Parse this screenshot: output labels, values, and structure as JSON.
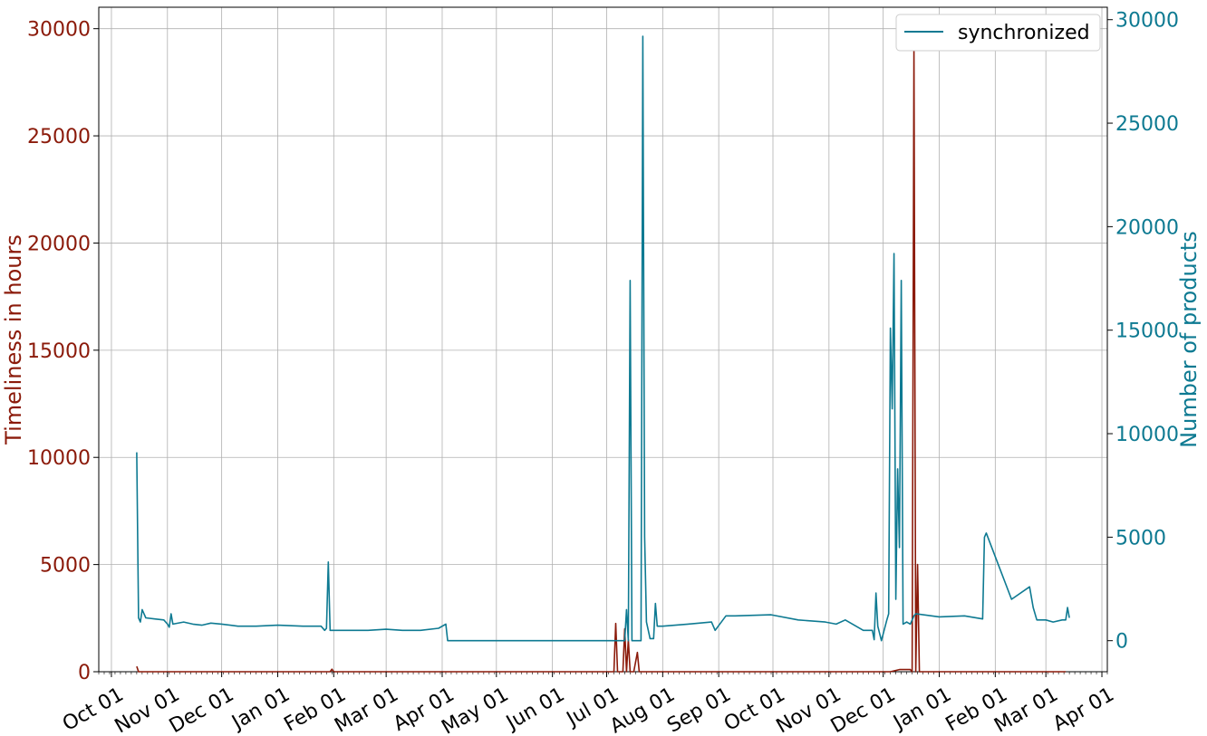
{
  "chart_data": {
    "type": "line",
    "title": "",
    "ylabel_left": "Timeliness in hours",
    "ylabel_right": "Number of products",
    "ylim_left": [
      0,
      31000
    ],
    "ylim_right": [
      -1500,
      30600
    ],
    "xlim": [
      "2019-09-24",
      "2021-04-04"
    ],
    "grid": true,
    "legend_position": "top-right",
    "legend": [
      "synchronized"
    ],
    "colors": {
      "timeliness": "#8b1a0a",
      "products": "#0e7a92"
    },
    "yticks_left": [
      0,
      5000,
      10000,
      15000,
      20000,
      25000,
      30000
    ],
    "yticks_right": [
      0,
      5000,
      10000,
      15000,
      20000,
      25000,
      30000
    ],
    "xtick_dates": [
      "2019-10-01",
      "2019-11-01",
      "2019-12-01",
      "2020-01-01",
      "2020-02-01",
      "2020-03-01",
      "2020-04-01",
      "2020-05-01",
      "2020-06-01",
      "2020-07-01",
      "2020-08-01",
      "2020-09-01",
      "2020-10-01",
      "2020-11-01",
      "2020-12-01",
      "2021-01-01",
      "2021-02-01",
      "2021-03-01",
      "2021-04-01"
    ],
    "xtick_labels": [
      "Oct 01",
      "Nov 01",
      "Dec 01",
      "Jan 01",
      "Feb 01",
      "Mar 01",
      "Apr 01",
      "May 01",
      "Jun 01",
      "Jul 01",
      "Aug 01",
      "Sep 01",
      "Oct 01",
      "Nov 01",
      "Dec 01",
      "Jan 01",
      "Feb 01",
      "Mar 01",
      "Apr 01"
    ],
    "series": [
      {
        "name": "synchronized",
        "axis": "right",
        "x": [
          "2019-10-15",
          "2019-10-16",
          "2019-10-17",
          "2019-10-18",
          "2019-10-20",
          "2019-10-25",
          "2019-10-30",
          "2019-11-01",
          "2019-11-02",
          "2019-11-03",
          "2019-11-04",
          "2019-11-10",
          "2019-11-15",
          "2019-11-20",
          "2019-11-25",
          "2019-12-01",
          "2019-12-10",
          "2019-12-20",
          "2020-01-01",
          "2020-01-15",
          "2020-01-25",
          "2020-01-27",
          "2020-01-28",
          "2020-01-29",
          "2020-01-30",
          "2020-02-10",
          "2020-02-20",
          "2020-03-01",
          "2020-03-10",
          "2020-03-20",
          "2020-03-30",
          "2020-04-03",
          "2020-04-04",
          "2020-05-15",
          "2020-06-15",
          "2020-07-10",
          "2020-07-11",
          "2020-07-12",
          "2020-07-13",
          "2020-07-14",
          "2020-07-15",
          "2020-07-16",
          "2020-07-17",
          "2020-07-18",
          "2020-07-19",
          "2020-07-20",
          "2020-07-21",
          "2020-07-22",
          "2020-07-23",
          "2020-07-25",
          "2020-07-27",
          "2020-07-28",
          "2020-07-29",
          "2020-08-01",
          "2020-08-15",
          "2020-08-28",
          "2020-08-30",
          "2020-09-05",
          "2020-09-10",
          "2020-09-30",
          "2020-10-15",
          "2020-10-30",
          "2020-11-05",
          "2020-11-10",
          "2020-11-20",
          "2020-11-25",
          "2020-11-26",
          "2020-11-27",
          "2020-11-28",
          "2020-11-30",
          "2020-12-03",
          "2020-12-04",
          "2020-12-05",
          "2020-12-06",
          "2020-12-07",
          "2020-12-08",
          "2020-12-09",
          "2020-12-10",
          "2020-12-11",
          "2020-12-12",
          "2020-12-13",
          "2020-12-14",
          "2020-12-15",
          "2020-12-16",
          "2020-12-17",
          "2020-12-18",
          "2020-12-19",
          "2021-01-01",
          "2021-01-15",
          "2021-01-25",
          "2021-01-26",
          "2021-01-27",
          "2021-02-10",
          "2021-02-20",
          "2021-02-22",
          "2021-02-24",
          "2021-02-25",
          "2021-02-26",
          "2021-02-27",
          "2021-03-01",
          "2021-03-05",
          "2021-03-10",
          "2021-03-12",
          "2021-03-13",
          "2021-03-14"
        ],
        "values": [
          9100,
          1100,
          900,
          1500,
          1100,
          1050,
          1000,
          800,
          650,
          1300,
          800,
          900,
          800,
          750,
          850,
          800,
          700,
          700,
          750,
          700,
          700,
          500,
          600,
          3800,
          500,
          500,
          500,
          550,
          500,
          500,
          600,
          800,
          0,
          0,
          0,
          0,
          0,
          1500,
          0,
          17400,
          0,
          0,
          0,
          0,
          0,
          0,
          29200,
          5000,
          900,
          100,
          100,
          1800,
          700,
          700,
          800,
          900,
          500,
          1200,
          1200,
          1250,
          1000,
          900,
          800,
          1000,
          500,
          500,
          50,
          2300,
          700,
          0,
          1000,
          1300,
          15100,
          11200,
          18700,
          2000,
          8300,
          4500,
          17400,
          800,
          850,
          900,
          850,
          800,
          1000,
          1200,
          1300,
          1150,
          1200,
          1050,
          5000,
          5200,
          2000,
          2600,
          1600,
          1000,
          1000,
          1000,
          1000,
          1000,
          900,
          1000,
          1000,
          1600,
          1100
        ]
      },
      {
        "name": "",
        "axis": "left",
        "x": [
          "2019-10-15",
          "2019-10-16",
          "2020-01-30",
          "2020-01-31",
          "2020-02-01",
          "2020-07-05",
          "2020-07-06",
          "2020-07-07",
          "2020-07-08",
          "2020-07-10",
          "2020-07-11",
          "2020-07-12",
          "2020-07-13",
          "2020-07-14",
          "2020-07-15",
          "2020-07-16",
          "2020-07-18",
          "2020-07-19",
          "2020-07-20",
          "2020-07-22",
          "2020-12-05",
          "2020-12-10",
          "2020-12-16",
          "2020-12-17",
          "2020-12-18",
          "2020-12-19",
          "2020-12-20",
          "2020-12-21",
          "2020-12-22",
          "2020-12-23",
          "2021-02-20",
          "2021-03-01",
          "2021-03-10",
          "2021-03-12"
        ],
        "values": [
          250,
          0,
          0,
          120,
          0,
          0,
          2250,
          0,
          0,
          0,
          2000,
          0,
          1500,
          0,
          0,
          0,
          900,
          0,
          0,
          0,
          0,
          100,
          100,
          0,
          29000,
          0,
          5000,
          0,
          0,
          0,
          0,
          0,
          0,
          0
        ]
      }
    ]
  }
}
